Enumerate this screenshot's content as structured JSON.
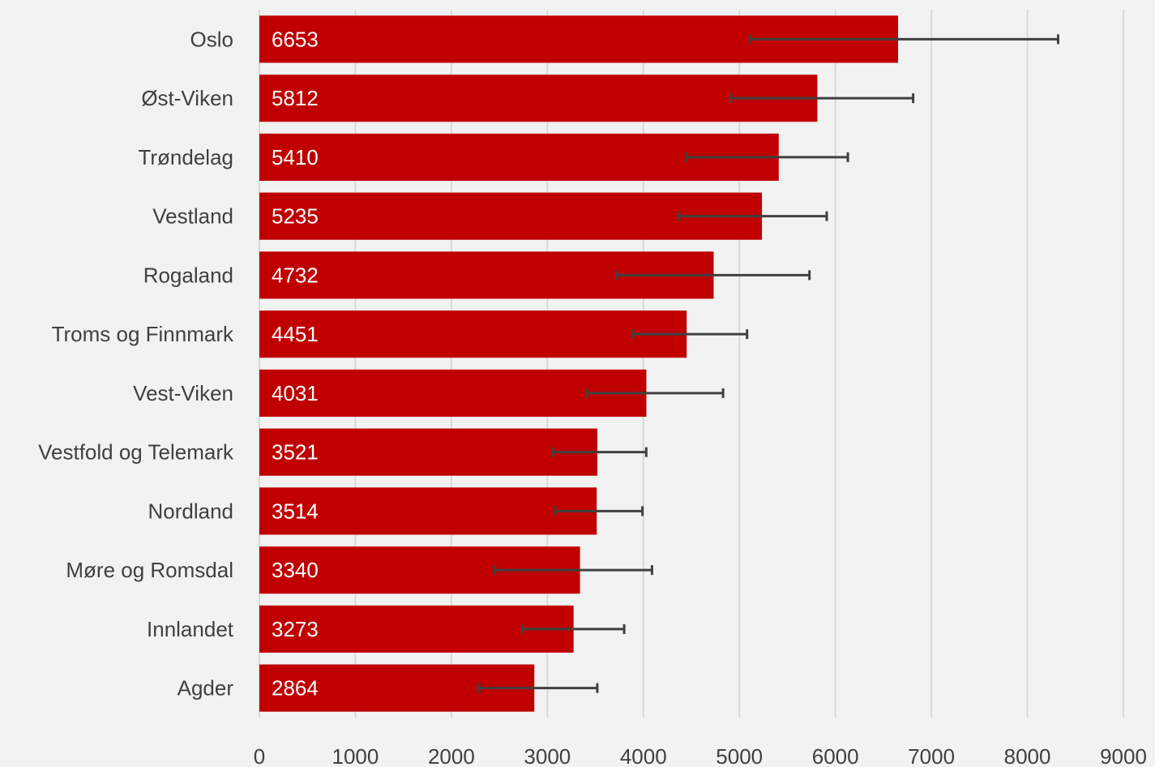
{
  "chart_data": {
    "type": "bar",
    "orientation": "horizontal",
    "title": "",
    "xlabel": "",
    "ylabel": "",
    "categories": [
      "Oslo",
      "Øst-Viken",
      "Trøndelag",
      "Vestland",
      "Rogaland",
      "Troms og Finnmark",
      "Vest-Viken",
      "Vestfold og Telemark",
      "Nordland",
      "Møre og Romsdal",
      "Innlandet",
      "Agder"
    ],
    "values": [
      6653,
      5812,
      5410,
      5235,
      4732,
      4451,
      4031,
      3521,
      3514,
      3340,
      3273,
      2864
    ],
    "error_low": [
      5110,
      4910,
      4450,
      4370,
      3720,
      3890,
      3410,
      3060,
      3080,
      2450,
      2740,
      2290
    ],
    "error_high": [
      8320,
      6810,
      6130,
      5910,
      5730,
      5080,
      4830,
      4030,
      3990,
      4090,
      3800,
      3520
    ],
    "xlim": [
      0,
      9000
    ],
    "xticks": [
      0,
      1000,
      2000,
      3000,
      4000,
      5000,
      6000,
      7000,
      8000,
      9000
    ],
    "grid": true,
    "legend": "none",
    "colors": {
      "bar": "#c00000",
      "error_bar": "#404040",
      "grid": "#d9d9d9",
      "background": "#f2f2f2",
      "text": "#404040",
      "data_label": "#ffffff"
    }
  }
}
